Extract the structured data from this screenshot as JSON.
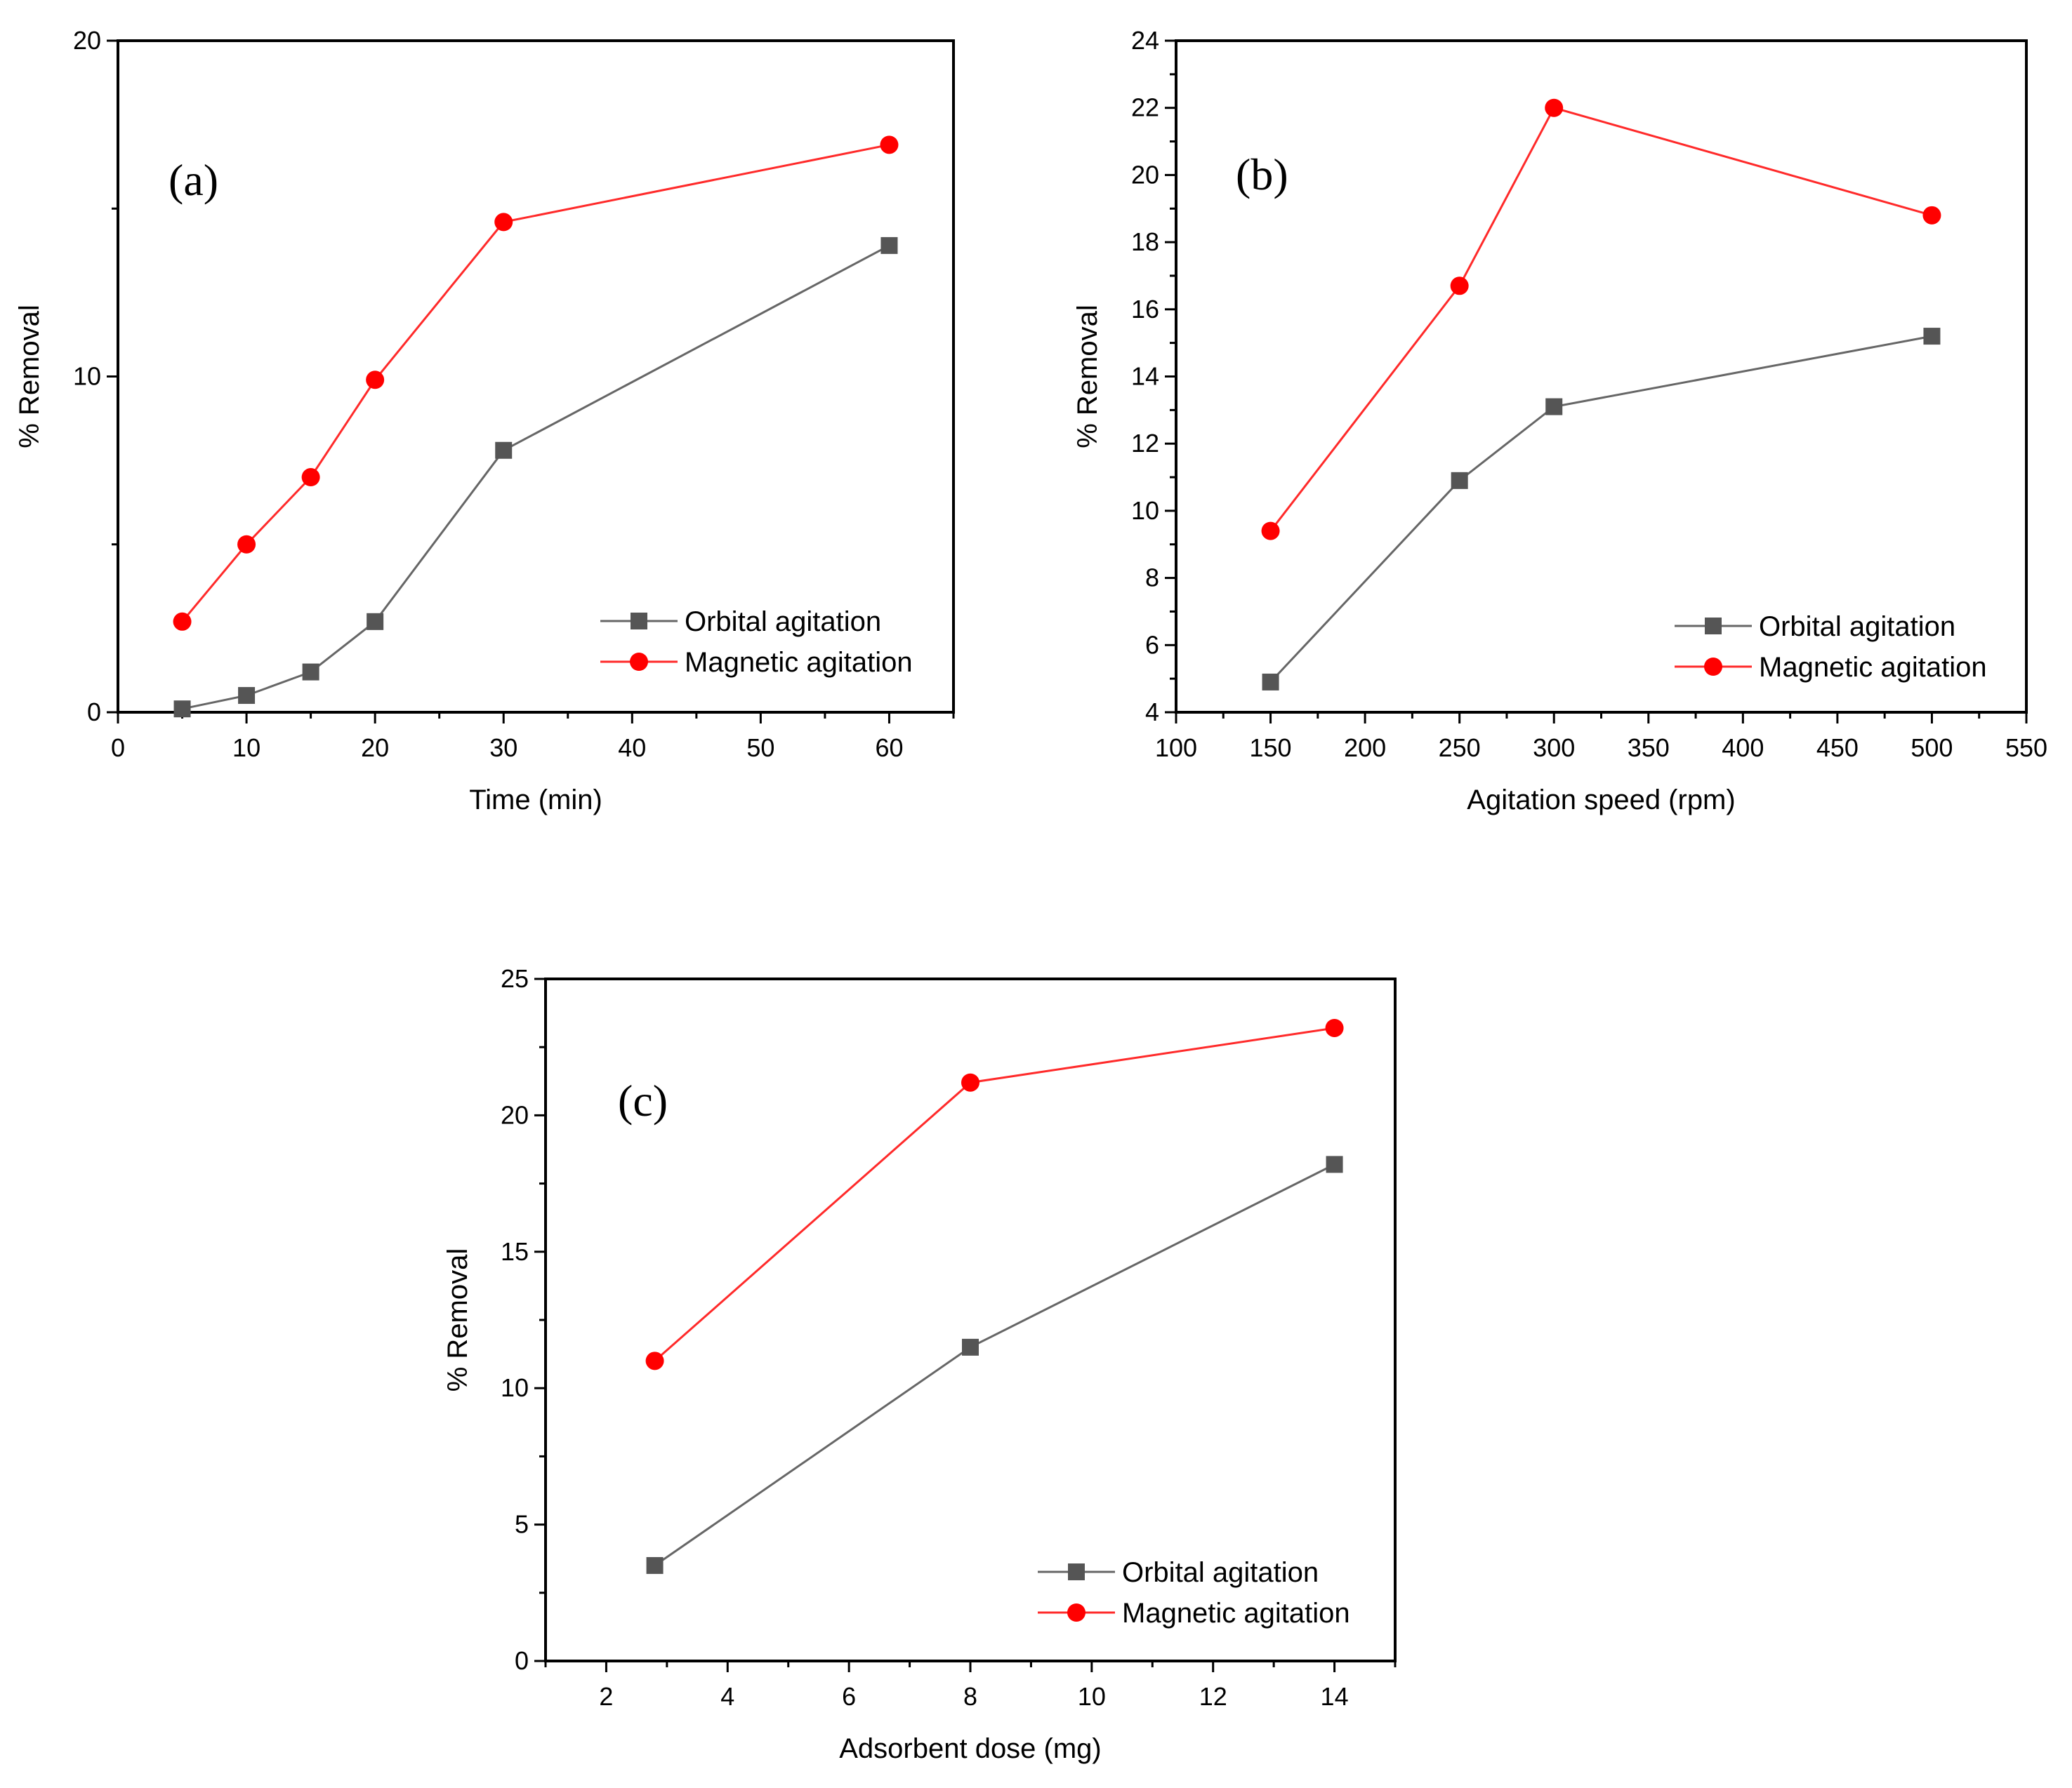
{
  "colors": {
    "orbital": "#555555",
    "magnetic": "#ff0000",
    "orbital_line": "#666666",
    "magnetic_line": "#ff2a2a",
    "axis": "#000000"
  },
  "chart_data": [
    {
      "id": "a",
      "type": "line",
      "panel_label": "(a)",
      "title": "",
      "xlabel": "Time (min)",
      "ylabel": "% Removal",
      "xlim": [
        0,
        65
      ],
      "ylim": [
        0,
        20
      ],
      "xticks": [
        0,
        10,
        20,
        30,
        40,
        50,
        60
      ],
      "yticks": [
        0,
        10,
        20
      ],
      "x_minor_step": 5,
      "y_minor_step": 5,
      "legend_position": "bottom-right",
      "series": [
        {
          "name": "Orbital agitation",
          "marker": "square",
          "x": [
            5,
            10,
            15,
            20,
            30,
            60
          ],
          "values": [
            0.1,
            0.5,
            1.2,
            2.7,
            7.8,
            13.9
          ]
        },
        {
          "name": "Magnetic agitation",
          "marker": "circle",
          "x": [
            5,
            10,
            15,
            20,
            30,
            60
          ],
          "values": [
            2.7,
            5.0,
            7.0,
            9.9,
            14.6,
            16.9
          ]
        }
      ]
    },
    {
      "id": "b",
      "type": "line",
      "panel_label": "(b)",
      "title": "",
      "xlabel": "Agitation speed (rpm)",
      "ylabel": "% Removal",
      "xlim": [
        100,
        550
      ],
      "ylim": [
        4,
        24
      ],
      "xticks": [
        100,
        150,
        200,
        250,
        300,
        350,
        400,
        450,
        500,
        550
      ],
      "yticks": [
        4,
        6,
        8,
        10,
        12,
        14,
        16,
        18,
        20,
        22,
        24
      ],
      "x_minor_step": 25,
      "y_minor_step": 1,
      "legend_position": "bottom-right",
      "series": [
        {
          "name": "Orbital agitation",
          "marker": "square",
          "x": [
            150,
            250,
            300,
            500
          ],
          "values": [
            4.9,
            10.9,
            13.1,
            15.2
          ]
        },
        {
          "name": "Magnetic agitation",
          "marker": "circle",
          "x": [
            150,
            250,
            300,
            500
          ],
          "values": [
            9.4,
            16.7,
            22.0,
            18.8
          ]
        }
      ]
    },
    {
      "id": "c",
      "type": "line",
      "panel_label": "(c)",
      "title": "",
      "xlabel": "Adsorbent dose (mg)",
      "ylabel": "% Removal",
      "xlim": [
        1,
        15
      ],
      "ylim": [
        0,
        25
      ],
      "xticks": [
        2,
        4,
        6,
        8,
        10,
        12,
        14
      ],
      "yticks": [
        0,
        5,
        10,
        15,
        20,
        25
      ],
      "x_minor_step": 1,
      "y_minor_step": 2.5,
      "legend_position": "bottom-right",
      "series": [
        {
          "name": "Orbital agitation",
          "marker": "square",
          "x": [
            2.8,
            8,
            14
          ],
          "values": [
            3.5,
            11.5,
            18.2
          ]
        },
        {
          "name": "Magnetic agitation",
          "marker": "circle",
          "x": [
            2.8,
            8,
            14
          ],
          "values": [
            11.0,
            21.2,
            23.2
          ]
        }
      ]
    }
  ]
}
